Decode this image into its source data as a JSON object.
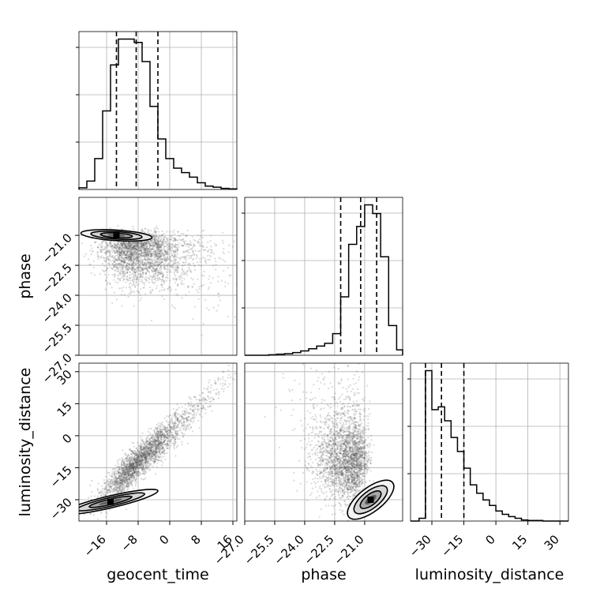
{
  "chart_data": {
    "type": "corner",
    "parameters": [
      "geocent_time",
      "phase",
      "luminosity_distance"
    ],
    "ranges": {
      "geocent_time": [
        -23,
        17
      ],
      "phase": [
        -27,
        -19.1
      ],
      "luminosity_distance": [
        -40,
        34
      ]
    },
    "ticks": {
      "geocent_time": [
        "-16",
        "-8",
        "0",
        "8",
        "16"
      ],
      "phase": [
        "-27.0",
        "-25.5",
        "-24.0",
        "-22.5",
        "-21.0"
      ],
      "luminosity_distance": [
        "-30",
        "-15",
        "0",
        "15",
        "30"
      ]
    },
    "tick_values": {
      "geocent_time": [
        -16,
        -8,
        0,
        8,
        16
      ],
      "phase": [
        -27,
        -25.5,
        -24,
        -22.5,
        -21
      ],
      "luminosity_distance": [
        -30,
        -15,
        0,
        15,
        30
      ]
    },
    "quantiles": {
      "geocent_time": [
        -13.5,
        -8.5,
        -3
      ],
      "phase": [
        -22.2,
        -21.2,
        -20.4
      ],
      "luminosity_distance": [
        -33,
        -25.5,
        -15
      ]
    },
    "histograms": {
      "geocent_time": {
        "edges": [
          -23,
          -21,
          -19,
          -17,
          -15,
          -13,
          -11,
          -9,
          -7,
          -5,
          -3,
          -1,
          1,
          3,
          5,
          7,
          9,
          11,
          13,
          15,
          17
        ],
        "counts": [
          3,
          15,
          55,
          140,
          222,
          268,
          268,
          262,
          228,
          148,
          90,
          55,
          38,
          30,
          22,
          12,
          6,
          4,
          2,
          1
        ]
      },
      "phase": {
        "edges": [
          -27,
          -26.6,
          -26.2,
          -25.8,
          -25.4,
          -25,
          -24.6,
          -24.2,
          -23.8,
          -23.4,
          -23,
          -22.6,
          -22.2,
          -21.8,
          -21.4,
          -21,
          -20.6,
          -20.2,
          -19.8,
          -19.4,
          -19.1
        ],
        "counts": [
          0,
          0,
          0,
          1,
          2,
          3,
          5,
          8,
          12,
          17,
          22,
          40,
          108,
          205,
          238,
          278,
          262,
          182,
          55,
          10
        ]
      },
      "luminosity_distance": {
        "edges": [
          -40,
          -36,
          -33,
          -30,
          -27,
          -24,
          -21,
          -18,
          -15,
          -12,
          -9,
          -6,
          -3,
          0,
          3,
          6,
          9,
          12,
          15,
          22,
          34
        ],
        "counts": [
          0,
          5,
          270,
          200,
          205,
          180,
          150,
          125,
          95,
          65,
          50,
          38,
          28,
          18,
          12,
          8,
          5,
          2,
          1,
          0
        ]
      }
    },
    "contour_levels": [
      "0.5",
      "1",
      "1.5",
      "2"
    ],
    "scatter_color": "#555555",
    "line_color": "#000000",
    "grid": true
  }
}
